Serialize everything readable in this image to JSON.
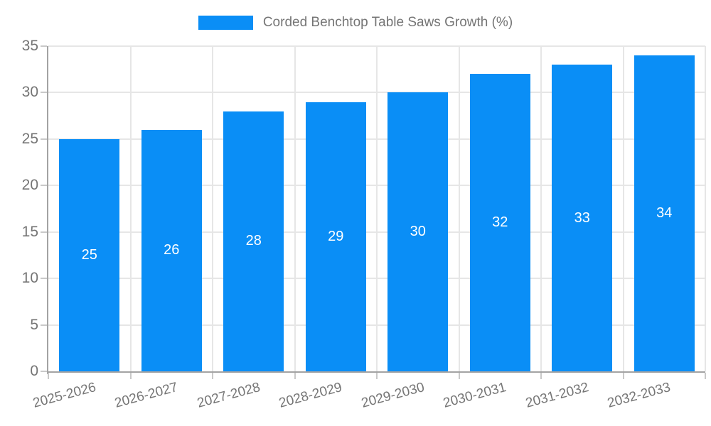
{
  "legend": {
    "label": "Corded Benchtop Table Saws Growth (%)"
  },
  "chart_data": {
    "type": "bar",
    "title": "Corded Benchtop Table Saws Growth (%)",
    "categories": [
      "2025-2026",
      "2026-2027",
      "2027-2028",
      "2028-2029",
      "2029-2030",
      "2030-2031",
      "2031-2032",
      "2032-2033"
    ],
    "values": [
      25,
      26,
      28,
      29,
      30,
      32,
      33,
      34
    ],
    "bar_labels": [
      "25",
      "26",
      "28",
      "29",
      "30",
      "32",
      "33",
      "34"
    ],
    "xlabel": "",
    "ylabel": "",
    "ylim": [
      0,
      35
    ],
    "yticks": [
      0,
      5,
      10,
      15,
      20,
      25,
      30,
      35
    ],
    "grid": true,
    "legend_position": "top-center",
    "x_tick_rotation_deg": -15
  },
  "colors": {
    "bar": "#0a8ef6",
    "bar_label": "#ffffff",
    "axis": "#a3a3a3",
    "gridline": "#e6e6e6",
    "tick": "#c9c9c9",
    "text": "#757575",
    "background": "#ffffff"
  }
}
